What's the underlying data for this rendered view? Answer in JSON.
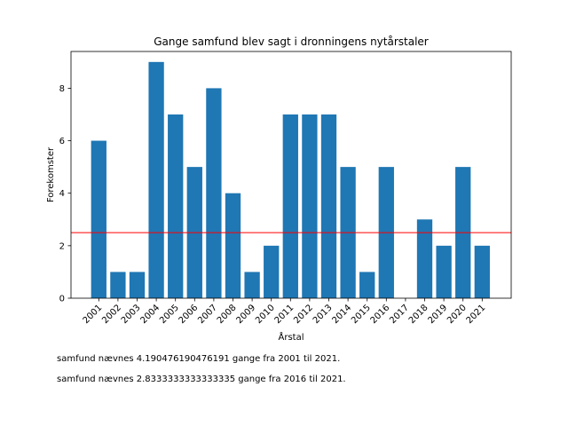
{
  "chart_data": {
    "type": "bar",
    "title": "Gange samfund blev sagt i dronningens nytårstaler",
    "xlabel": "Årstal",
    "ylabel": "Forekomster",
    "categories": [
      "2001",
      "2002",
      "2003",
      "2004",
      "2005",
      "2006",
      "2007",
      "2008",
      "2009",
      "2010",
      "2011",
      "2012",
      "2013",
      "2014",
      "2015",
      "2016",
      "2017",
      "2018",
      "2019",
      "2020",
      "2021"
    ],
    "values": [
      6,
      1,
      1,
      9,
      7,
      5,
      8,
      4,
      1,
      2,
      7,
      7,
      7,
      5,
      1,
      5,
      0,
      3,
      2,
      5,
      2
    ],
    "ylim": [
      0,
      9.4
    ],
    "yticks": [
      0,
      2,
      4,
      6,
      8
    ],
    "reference_line": {
      "y": 2.5,
      "color": "#ff0000"
    },
    "bar_color": "#1f77b4",
    "grid": false
  },
  "notes": [
    "samfund nævnes 4.190476190476191 gange fra 2001 til 2021.",
    "samfund nævnes 2.8333333333333335 gange fra 2016 til 2021."
  ]
}
